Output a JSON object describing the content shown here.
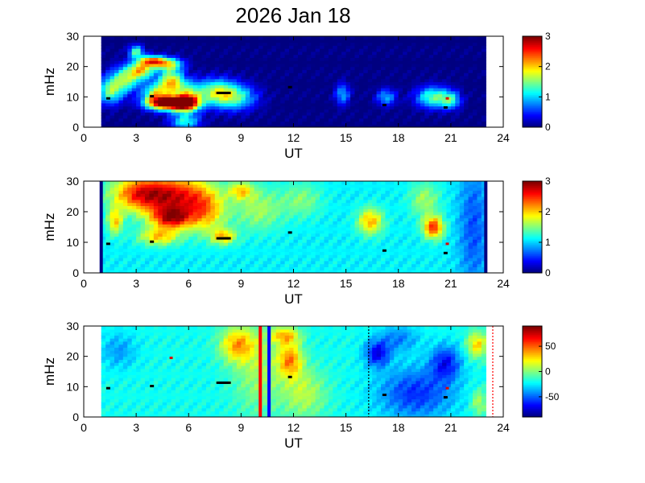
{
  "title": "2026 Jan 18",
  "chart_data": [
    {
      "type": "heatmap",
      "name": "top",
      "xlabel": "UT",
      "ylabel": "mHz",
      "xlim": [
        0,
        24
      ],
      "ylim": [
        0,
        30
      ],
      "xticks": [
        "0",
        "3",
        "6",
        "9",
        "12",
        "15",
        "18",
        "21",
        "24"
      ],
      "yticks": [
        "0",
        "10",
        "20",
        "30"
      ],
      "colorbar": {
        "min": 0,
        "max": 3,
        "ticks": [
          "0",
          "1",
          "2",
          "3"
        ]
      },
      "data_range_x": [
        1,
        23
      ],
      "background_value": 0,
      "blobs": [
        {
          "x": 1.5,
          "y": 12,
          "v": 1.4,
          "sx": 0.5,
          "sy": 3
        },
        {
          "x": 2.4,
          "y": 16,
          "v": 1.5,
          "sx": 0.6,
          "sy": 3
        },
        {
          "x": 3.3,
          "y": 19,
          "v": 1.8,
          "sx": 0.5,
          "sy": 2
        },
        {
          "x": 3.0,
          "y": 25,
          "v": 1.4,
          "sx": 0.3,
          "sy": 1.5
        },
        {
          "x": 3.9,
          "y": 22,
          "v": 2.0,
          "sx": 0.5,
          "sy": 1.2
        },
        {
          "x": 4.8,
          "y": 21,
          "v": 1.6,
          "sx": 0.6,
          "sy": 1.5
        },
        {
          "x": 4.1,
          "y": 11,
          "v": 1.6,
          "sx": 0.5,
          "sy": 2.5
        },
        {
          "x": 5.0,
          "y": 15,
          "v": 2.0,
          "sx": 0.5,
          "sy": 3
        },
        {
          "x": 4.7,
          "y": 8,
          "v": 2.6,
          "sx": 0.8,
          "sy": 1.6
        },
        {
          "x": 5.8,
          "y": 8,
          "v": 2.5,
          "sx": 0.6,
          "sy": 1.8
        },
        {
          "x": 5.8,
          "y": 2,
          "v": 1.2,
          "sx": 0.6,
          "sy": 2
        },
        {
          "x": 6.0,
          "y": 11,
          "v": 1.2,
          "sx": 0.5,
          "sy": 3
        },
        {
          "x": 7.5,
          "y": 12,
          "v": 1.3,
          "sx": 0.8,
          "sy": 3
        },
        {
          "x": 8.6,
          "y": 10,
          "v": 1.3,
          "sx": 0.9,
          "sy": 3
        },
        {
          "x": 14.8,
          "y": 11,
          "v": 0.9,
          "sx": 0.3,
          "sy": 2.5
        },
        {
          "x": 17.3,
          "y": 10,
          "v": 0.9,
          "sx": 0.4,
          "sy": 2
        },
        {
          "x": 20.0,
          "y": 10,
          "v": 1.4,
          "sx": 0.7,
          "sy": 2.5
        },
        {
          "x": 21.0,
          "y": 9,
          "v": 1.0,
          "sx": 0.4,
          "sy": 2
        }
      ],
      "black_markers": [
        {
          "x": 1.4,
          "y": 9.5
        },
        {
          "x": 3.9,
          "y": 10.2
        },
        {
          "x": 8.0,
          "y": 11.3
        },
        {
          "x": 11.8,
          "y": 13.2
        },
        {
          "x": 17.2,
          "y": 7.3
        },
        {
          "x": 20.7,
          "y": 6.5
        }
      ],
      "red_markers": [
        {
          "x": 20.8,
          "y": 9.5
        }
      ],
      "vlines": []
    },
    {
      "type": "heatmap",
      "name": "middle",
      "xlabel": "UT",
      "ylabel": "mHz",
      "xlim": [
        0,
        24
      ],
      "ylim": [
        0,
        30
      ],
      "xticks": [
        "0",
        "3",
        "6",
        "9",
        "12",
        "15",
        "18",
        "21",
        "24"
      ],
      "yticks": [
        "0",
        "10",
        "20",
        "30"
      ],
      "colorbar": {
        "min": 0,
        "max": 3,
        "ticks": [
          "0",
          "1",
          "2",
          "3"
        ]
      },
      "data_range_x": [
        1,
        23
      ],
      "background_value": 1.1,
      "blobs": [
        {
          "x": 3.3,
          "y": 26,
          "v": 2.5,
          "sx": 1.2,
          "sy": 4
        },
        {
          "x": 5.5,
          "y": 25,
          "v": 2.4,
          "sx": 1.3,
          "sy": 5
        },
        {
          "x": 5.0,
          "y": 18,
          "v": 2.5,
          "sx": 0.8,
          "sy": 2.5
        },
        {
          "x": 1.8,
          "y": 17,
          "v": 2.0,
          "sx": 0.3,
          "sy": 3
        },
        {
          "x": 4.3,
          "y": 12,
          "v": 2.0,
          "sx": 0.8,
          "sy": 2
        },
        {
          "x": 7.0,
          "y": 20,
          "v": 1.9,
          "sx": 0.8,
          "sy": 5
        },
        {
          "x": 8.0,
          "y": 12,
          "v": 2.0,
          "sx": 0.5,
          "sy": 1.8
        },
        {
          "x": 9.0,
          "y": 27,
          "v": 1.9,
          "sx": 0.5,
          "sy": 2
        },
        {
          "x": 10.0,
          "y": 21,
          "v": 1.6,
          "sx": 1.0,
          "sy": 5
        },
        {
          "x": 12.5,
          "y": 24,
          "v": 1.5,
          "sx": 0.8,
          "sy": 4
        },
        {
          "x": 16.4,
          "y": 17,
          "v": 2.1,
          "sx": 0.5,
          "sy": 3
        },
        {
          "x": 20.0,
          "y": 15,
          "v": 2.5,
          "sx": 0.4,
          "sy": 2.5
        },
        {
          "x": 19.5,
          "y": 24,
          "v": 1.6,
          "sx": 0.6,
          "sy": 4
        },
        {
          "x": 22.3,
          "y": 15,
          "v": 0.6,
          "sx": 0.6,
          "sy": 15
        }
      ],
      "black_markers": [
        {
          "x": 1.4,
          "y": 9.5
        },
        {
          "x": 3.9,
          "y": 10.2
        },
        {
          "x": 8.0,
          "y": 11.3
        },
        {
          "x": 11.8,
          "y": 13.2
        },
        {
          "x": 17.2,
          "y": 7.3
        },
        {
          "x": 20.7,
          "y": 6.5
        }
      ],
      "red_markers": [
        {
          "x": 20.8,
          "y": 9.5
        }
      ],
      "vlines": [
        {
          "x": 1.0,
          "color": "#000080",
          "style": "solid"
        },
        {
          "x": 23.0,
          "color": "#000080",
          "style": "solid"
        }
      ]
    },
    {
      "type": "heatmap",
      "name": "bottom",
      "xlabel": "UT",
      "ylabel": "mHz",
      "xlim": [
        0,
        24
      ],
      "ylim": [
        0,
        30
      ],
      "xticks": [
        "0",
        "3",
        "6",
        "9",
        "12",
        "15",
        "18",
        "21",
        "24"
      ],
      "yticks": [
        "0",
        "10",
        "20",
        "30"
      ],
      "colorbar": {
        "min": -90,
        "max": 90,
        "ticks": [
          "50",
          "0",
          "-50"
        ],
        "tick_values": [
          50,
          0,
          -50
        ]
      },
      "data_range_x": [
        1,
        23
      ],
      "background_value": -20,
      "blobs": [
        {
          "x": 8.8,
          "y": 24,
          "v": 35,
          "sx": 0.7,
          "sy": 4
        },
        {
          "x": 11.8,
          "y": 19,
          "v": 40,
          "sx": 0.5,
          "sy": 4
        },
        {
          "x": 11.5,
          "y": 27,
          "v": 30,
          "sx": 0.6,
          "sy": 2
        },
        {
          "x": 12.6,
          "y": 8,
          "v": 10,
          "sx": 0.9,
          "sy": 6
        },
        {
          "x": 10.0,
          "y": 15,
          "v": 5,
          "sx": 1.0,
          "sy": 10
        },
        {
          "x": 16.8,
          "y": 21,
          "v": -70,
          "sx": 0.5,
          "sy": 3
        },
        {
          "x": 19.0,
          "y": 8,
          "v": -60,
          "sx": 1.5,
          "sy": 6
        },
        {
          "x": 20.7,
          "y": 18,
          "v": -65,
          "sx": 0.6,
          "sy": 4
        },
        {
          "x": 18.0,
          "y": 26,
          "v": -45,
          "sx": 0.8,
          "sy": 3
        },
        {
          "x": 2.0,
          "y": 22,
          "v": -40,
          "sx": 0.7,
          "sy": 4
        },
        {
          "x": 22.5,
          "y": 24,
          "v": 30,
          "sx": 0.4,
          "sy": 3
        },
        {
          "x": 22.6,
          "y": 5,
          "v": 10,
          "sx": 0.3,
          "sy": 3
        }
      ],
      "black_markers": [
        {
          "x": 1.4,
          "y": 9.5
        },
        {
          "x": 3.9,
          "y": 10.2
        },
        {
          "x": 8.0,
          "y": 11.3
        },
        {
          "x": 11.8,
          "y": 13.2
        },
        {
          "x": 17.2,
          "y": 7.3
        },
        {
          "x": 20.7,
          "y": 6.5
        }
      ],
      "red_markers": [
        {
          "x": 5.0,
          "y": 19.5
        },
        {
          "x": 20.8,
          "y": 9.5
        }
      ],
      "vlines": [
        {
          "x": 10.1,
          "color": "#ff0000",
          "style": "solid"
        },
        {
          "x": 10.6,
          "color": "#0000ff",
          "style": "solid"
        },
        {
          "x": 16.3,
          "color": "#000000",
          "style": "dotted"
        },
        {
          "x": 23.4,
          "color": "#ff0000",
          "style": "dotted"
        }
      ]
    }
  ]
}
